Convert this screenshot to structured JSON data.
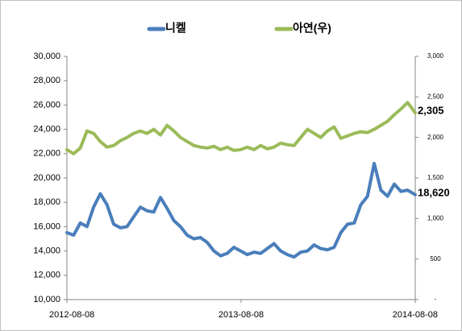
{
  "chart_data": {
    "type": "line",
    "x": [
      "2012-08-08",
      "2012-08-22",
      "2012-09-05",
      "2012-09-19",
      "2012-10-03",
      "2012-10-17",
      "2012-10-31",
      "2012-11-14",
      "2012-11-28",
      "2012-12-12",
      "2012-12-26",
      "2013-01-09",
      "2013-01-23",
      "2013-02-06",
      "2013-02-20",
      "2013-03-06",
      "2013-03-20",
      "2013-04-03",
      "2013-04-17",
      "2013-05-01",
      "2013-05-15",
      "2013-05-29",
      "2013-06-12",
      "2013-06-26",
      "2013-07-10",
      "2013-07-24",
      "2013-08-07",
      "2013-08-21",
      "2013-09-04",
      "2013-09-18",
      "2013-10-02",
      "2013-10-16",
      "2013-10-30",
      "2013-11-13",
      "2013-11-27",
      "2013-12-11",
      "2013-12-25",
      "2014-01-08",
      "2014-01-22",
      "2014-02-05",
      "2014-02-19",
      "2014-03-05",
      "2014-03-19",
      "2014-04-02",
      "2014-04-16",
      "2014-04-30",
      "2014-05-14",
      "2014-05-28",
      "2014-06-11",
      "2014-06-25",
      "2014-07-09",
      "2014-07-23",
      "2014-08-08"
    ],
    "xlim": [
      "2012-08-08",
      "2014-08-08"
    ],
    "xticks": [
      "2012-08-08",
      "2013-08-08",
      "2014-08-08"
    ],
    "series": [
      {
        "name": "니켈",
        "color": "#4a7ebb",
        "values": [
          15500,
          15300,
          16300,
          16000,
          17600,
          18700,
          17800,
          16200,
          15900,
          16000,
          16800,
          17600,
          17300,
          17200,
          18400,
          17500,
          16500,
          16000,
          15300,
          15000,
          15100,
          14700,
          14000,
          13600,
          13800,
          14300,
          14000,
          13700,
          13900,
          13800,
          14200,
          14600,
          14000,
          13700,
          13500,
          13900,
          14000,
          14500,
          14200,
          14100,
          14300,
          15500,
          16200,
          16300,
          17800,
          18500,
          21200,
          19000,
          18500,
          19500,
          18900,
          19000,
          18620
        ],
        "value_labels": [
          null,
          null,
          null,
          null,
          null,
          null,
          null,
          null,
          null,
          null,
          null,
          null,
          null,
          null,
          null,
          null,
          null,
          null,
          null,
          null,
          null,
          null,
          null,
          null,
          null,
          null,
          null,
          null,
          null,
          null,
          null,
          null,
          null,
          null,
          null,
          null,
          null,
          null,
          null,
          null,
          null,
          null,
          null,
          null,
          null,
          null,
          null,
          null,
          null,
          null,
          null,
          null,
          "18,620"
        ]
      },
      {
        "name": "아연(우)",
        "color": "#9bbb59",
        "axis": "y2",
        "values": [
          1850,
          1800,
          1870,
          2080,
          2050,
          1950,
          1880,
          1900,
          1960,
          2000,
          2050,
          2080,
          2050,
          2100,
          2030,
          2150,
          2080,
          2000,
          1950,
          1900,
          1880,
          1870,
          1890,
          1850,
          1880,
          1840,
          1850,
          1880,
          1850,
          1900,
          1860,
          1880,
          1930,
          1910,
          1900,
          2000,
          2100,
          2050,
          2000,
          2080,
          2130,
          1990,
          2020,
          2050,
          2070,
          2060,
          2100,
          2150,
          2200,
          2280,
          2350,
          2430,
          2305
        ],
        "value_labels": [
          null,
          null,
          null,
          null,
          null,
          null,
          null,
          null,
          null,
          null,
          null,
          null,
          null,
          null,
          null,
          null,
          null,
          null,
          null,
          null,
          null,
          null,
          null,
          null,
          null,
          null,
          null,
          null,
          null,
          null,
          null,
          null,
          null,
          null,
          null,
          null,
          null,
          null,
          null,
          null,
          null,
          null,
          null,
          null,
          null,
          null,
          null,
          null,
          null,
          null,
          null,
          null,
          "2,305"
        ]
      }
    ],
    "ylim": [
      10000,
      30000
    ],
    "yticks": [
      {
        "value": 10000,
        "label": "10,000"
      },
      {
        "value": 12000,
        "label": "12,000"
      },
      {
        "value": 14000,
        "label": "14,000"
      },
      {
        "value": 16000,
        "label": "16,000"
      },
      {
        "value": 18000,
        "label": "18,000"
      },
      {
        "value": 20000,
        "label": "20,000"
      },
      {
        "value": 22000,
        "label": "22,000"
      },
      {
        "value": 24000,
        "label": "24,000"
      },
      {
        "value": 26000,
        "label": "26,000"
      },
      {
        "value": 28000,
        "label": "28,000"
      },
      {
        "value": 30000,
        "label": "30,000"
      }
    ],
    "y2lim": [
      0,
      3000
    ],
    "y2ticks": [
      {
        "value": 0,
        "label": "-"
      },
      500,
      {
        "value": 1000,
        "label": "1,000"
      },
      {
        "value": 1500,
        "label": "1,500"
      },
      {
        "value": 2000,
        "label": "2,000"
      },
      {
        "value": 2500,
        "label": "2,500"
      },
      {
        "value": 3000,
        "label": "3,000"
      }
    ],
    "legend": "top"
  }
}
